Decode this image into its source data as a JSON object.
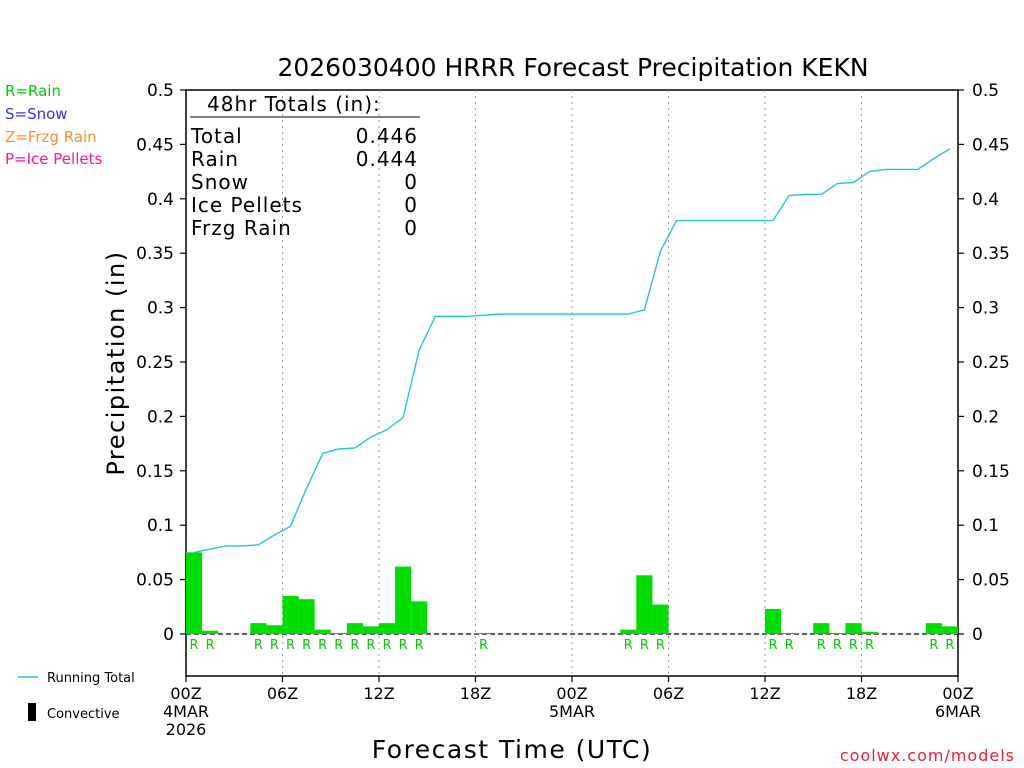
{
  "colors": {
    "background": "#ffffff",
    "axis": "#000000",
    "grid": "#9a9a9a",
    "running_total": "#22c8d0",
    "bar": "#00dd00",
    "rain": "#00cc00",
    "snow": "#3030ff",
    "frzg_rain": "#ff8c28",
    "ice_pellets": "#ff1493",
    "credit": "#e8203a"
  },
  "legend_left": {
    "rain": "R=Rain",
    "snow": "S=Snow",
    "frzg_rain": "Z=Frzg Rain",
    "ice_pellets": "P=Ice Pellets"
  },
  "legend_bottom": {
    "running_total": "Running Total",
    "convective": "Convective"
  },
  "totals_box": {
    "header": "48hr Totals (in):",
    "rows": [
      {
        "label": "Total",
        "value": "0.446"
      },
      {
        "label": "Rain",
        "value": "0.444"
      },
      {
        "label": "Snow",
        "value": "0"
      },
      {
        "label": "Ice Pellets",
        "value": "0"
      },
      {
        "label": "Frzg Rain",
        "value": "0"
      }
    ]
  },
  "credit": "coolwx.com/models",
  "chart_data": {
    "type": "bar",
    "title": "2026030400 HRRR Forecast Precipitation KEKN",
    "xlabel": "Forecast Time (UTC)",
    "ylabel": "Precipitation (in)",
    "xlim": [
      0,
      48
    ],
    "ylim": [
      0,
      0.5
    ],
    "y_ticks": [
      "0",
      "0.05",
      "0.1",
      "0.15",
      "0.2",
      "0.25",
      "0.3",
      "0.35",
      "0.4",
      "0.45",
      "0.5"
    ],
    "x_ticks": [
      {
        "hour": 0,
        "lines": [
          "00Z",
          "4MAR",
          "2026"
        ]
      },
      {
        "hour": 6,
        "lines": [
          "06Z"
        ]
      },
      {
        "hour": 12,
        "lines": [
          "12Z"
        ]
      },
      {
        "hour": 18,
        "lines": [
          "18Z"
        ]
      },
      {
        "hour": 24,
        "lines": [
          "00Z",
          "5MAR"
        ]
      },
      {
        "hour": 30,
        "lines": [
          "06Z"
        ]
      },
      {
        "hour": 36,
        "lines": [
          "12Z"
        ]
      },
      {
        "hour": 42,
        "lines": [
          "18Z"
        ]
      },
      {
        "hour": 48,
        "lines": [
          "00Z",
          "6MAR"
        ]
      }
    ],
    "grid_vertical_hours": [
      6,
      12,
      18,
      24,
      30,
      36,
      42
    ],
    "grid": "vertical dotted",
    "bars": [
      {
        "hour": 1,
        "value": 0.075
      },
      {
        "hour": 2,
        "value": 0.003
      },
      {
        "hour": 3,
        "value": 0.0
      },
      {
        "hour": 4,
        "value": 0.0
      },
      {
        "hour": 5,
        "value": 0.01
      },
      {
        "hour": 6,
        "value": 0.008
      },
      {
        "hour": 7,
        "value": 0.035
      },
      {
        "hour": 8,
        "value": 0.032
      },
      {
        "hour": 9,
        "value": 0.004
      },
      {
        "hour": 10,
        "value": 0.001
      },
      {
        "hour": 11,
        "value": 0.01
      },
      {
        "hour": 12,
        "value": 0.007
      },
      {
        "hour": 13,
        "value": 0.01
      },
      {
        "hour": 14,
        "value": 0.062
      },
      {
        "hour": 15,
        "value": 0.03
      },
      {
        "hour": 16,
        "value": 0.0
      },
      {
        "hour": 17,
        "value": 0.0
      },
      {
        "hour": 18,
        "value": 0.0
      },
      {
        "hour": 19,
        "value": 0.001
      },
      {
        "hour": 20,
        "value": 0.0
      },
      {
        "hour": 21,
        "value": 0.0
      },
      {
        "hour": 22,
        "value": 0.0
      },
      {
        "hour": 23,
        "value": 0.0
      },
      {
        "hour": 24,
        "value": 0.0
      },
      {
        "hour": 25,
        "value": 0.0
      },
      {
        "hour": 26,
        "value": 0.0
      },
      {
        "hour": 27,
        "value": 0.0
      },
      {
        "hour": 28,
        "value": 0.004
      },
      {
        "hour": 29,
        "value": 0.054
      },
      {
        "hour": 30,
        "value": 0.027
      },
      {
        "hour": 31,
        "value": 0.0
      },
      {
        "hour": 32,
        "value": 0.0
      },
      {
        "hour": 33,
        "value": 0.0
      },
      {
        "hour": 34,
        "value": 0.0
      },
      {
        "hour": 35,
        "value": 0.0
      },
      {
        "hour": 36,
        "value": 0.0
      },
      {
        "hour": 37,
        "value": 0.023
      },
      {
        "hour": 38,
        "value": 0.001
      },
      {
        "hour": 39,
        "value": 0.0
      },
      {
        "hour": 40,
        "value": 0.01
      },
      {
        "hour": 41,
        "value": 0.001
      },
      {
        "hour": 42,
        "value": 0.01
      },
      {
        "hour": 43,
        "value": 0.002
      },
      {
        "hour": 44,
        "value": 0.0
      },
      {
        "hour": 45,
        "value": 0.0
      },
      {
        "hour": 46,
        "value": 0.0
      },
      {
        "hour": 47,
        "value": 0.01
      },
      {
        "hour": 48,
        "value": 0.007
      }
    ],
    "running_total": [
      {
        "hour": 0.5,
        "value": 0.075
      },
      {
        "hour": 1.5,
        "value": 0.078
      },
      {
        "hour": 2.5,
        "value": 0.081
      },
      {
        "hour": 3.5,
        "value": 0.081
      },
      {
        "hour": 4.5,
        "value": 0.082
      },
      {
        "hour": 5.5,
        "value": 0.091
      },
      {
        "hour": 6.5,
        "value": 0.099
      },
      {
        "hour": 7.5,
        "value": 0.134
      },
      {
        "hour": 8.5,
        "value": 0.166
      },
      {
        "hour": 9.5,
        "value": 0.17
      },
      {
        "hour": 10.5,
        "value": 0.171
      },
      {
        "hour": 11.5,
        "value": 0.181
      },
      {
        "hour": 12.5,
        "value": 0.188
      },
      {
        "hour": 13.5,
        "value": 0.199
      },
      {
        "hour": 14.5,
        "value": 0.261
      },
      {
        "hour": 15.5,
        "value": 0.292
      },
      {
        "hour": 17.5,
        "value": 0.292
      },
      {
        "hour": 18.5,
        "value": 0.293
      },
      {
        "hour": 19.5,
        "value": 0.294
      },
      {
        "hour": 27.5,
        "value": 0.294
      },
      {
        "hour": 28.5,
        "value": 0.298
      },
      {
        "hour": 29.5,
        "value": 0.352
      },
      {
        "hour": 30.5,
        "value": 0.38
      },
      {
        "hour": 36.5,
        "value": 0.38
      },
      {
        "hour": 37.5,
        "value": 0.403
      },
      {
        "hour": 38.5,
        "value": 0.404
      },
      {
        "hour": 39.5,
        "value": 0.404
      },
      {
        "hour": 40.5,
        "value": 0.414
      },
      {
        "hour": 41.5,
        "value": 0.415
      },
      {
        "hour": 42.5,
        "value": 0.425
      },
      {
        "hour": 43.5,
        "value": 0.427
      },
      {
        "hour": 44.5,
        "value": 0.427
      },
      {
        "hour": 45.5,
        "value": 0.427
      },
      {
        "hour": 46.5,
        "value": 0.437
      },
      {
        "hour": 47.5,
        "value": 0.446
      }
    ],
    "ptype_markers": [
      {
        "hour": 1,
        "type": "R"
      },
      {
        "hour": 2,
        "type": "R"
      },
      {
        "hour": 5,
        "type": "R"
      },
      {
        "hour": 6,
        "type": "R"
      },
      {
        "hour": 7,
        "type": "R"
      },
      {
        "hour": 8,
        "type": "R"
      },
      {
        "hour": 9,
        "type": "R"
      },
      {
        "hour": 10,
        "type": "R"
      },
      {
        "hour": 11,
        "type": "R"
      },
      {
        "hour": 12,
        "type": "R"
      },
      {
        "hour": 13,
        "type": "R"
      },
      {
        "hour": 14,
        "type": "R"
      },
      {
        "hour": 15,
        "type": "R"
      },
      {
        "hour": 19,
        "type": "R"
      },
      {
        "hour": 28,
        "type": "R"
      },
      {
        "hour": 29,
        "type": "R"
      },
      {
        "hour": 30,
        "type": "R"
      },
      {
        "hour": 37,
        "type": "R"
      },
      {
        "hour": 38,
        "type": "R"
      },
      {
        "hour": 40,
        "type": "R"
      },
      {
        "hour": 41,
        "type": "R"
      },
      {
        "hour": 42,
        "type": "R"
      },
      {
        "hour": 43,
        "type": "R"
      },
      {
        "hour": 47,
        "type": "R"
      },
      {
        "hour": 48,
        "type": "R"
      }
    ]
  }
}
